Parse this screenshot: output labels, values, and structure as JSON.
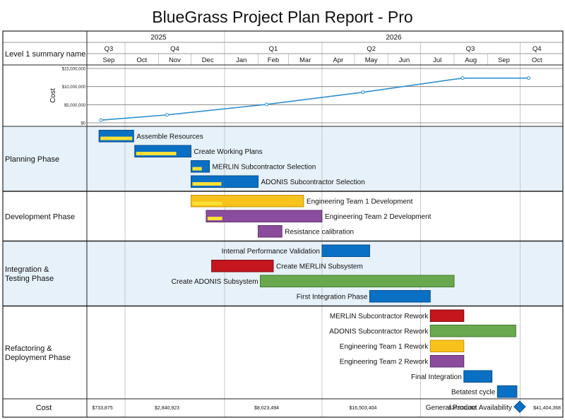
{
  "colors": {
    "blue": "#0a70c4",
    "blue_border": "#064d8a",
    "yellow": "#f9c21b",
    "yellow_border": "#c99500",
    "purple": "#8c4c9e",
    "purple_border": "#5e2f6d",
    "red": "#c4161c",
    "red_border": "#7e0b0e",
    "green": "#6aa84f",
    "green_border": "#3d7a2a",
    "band": "#e6f1f9",
    "cost_line": "#2e8fd0",
    "grid": "#c8c8c8",
    "progress": "#ffe135"
  },
  "chart_data": {
    "type": "gantt",
    "title": "BlueGrass Project Plan Report - Pro",
    "header_label": "Level 1 summary name",
    "years": [
      {
        "label": "2025",
        "start": "2025-09-01",
        "end": "2026-01-01"
      },
      {
        "label": "2026",
        "start": "2026-01-01",
        "end": "2026-11-01"
      }
    ],
    "quarters": [
      {
        "label": "Q3",
        "start": "2025-09-01",
        "end": "2025-10-01"
      },
      {
        "label": "Q4",
        "start": "2025-10-01",
        "end": "2026-01-01"
      },
      {
        "label": "Q1",
        "start": "2026-01-01",
        "end": "2026-04-01"
      },
      {
        "label": "Q2",
        "start": "2026-04-01",
        "end": "2026-07-01"
      },
      {
        "label": "Q3",
        "start": "2026-07-01",
        "end": "2026-10-01"
      },
      {
        "label": "Q4",
        "start": "2026-10-01",
        "end": "2026-11-01"
      }
    ],
    "months": [
      "Sep",
      "Oct",
      "Nov",
      "Dec",
      "Jan",
      "Feb",
      "Mar",
      "Apr",
      "May",
      "Jun",
      "Jul",
      "Aug",
      "Sep",
      "Oct"
    ],
    "cost_chart": {
      "ylabel": "Cost",
      "ylim": [
        0,
        15000000
      ],
      "y_ticks": [
        "$0",
        "$5,000,000",
        "$10,000,000",
        "$15,000,000"
      ],
      "series": [
        {
          "x": "2025-09-01",
          "y": 733875
        },
        {
          "x": "2025-11-01",
          "y": 2190000
        },
        {
          "x": "2026-02-01",
          "y": 5090000
        },
        {
          "x": "2026-05-01",
          "y": 8440000
        },
        {
          "x": "2026-08-01",
          "y": 12340000
        },
        {
          "x": "2026-10-01",
          "y": 12340000
        }
      ]
    },
    "phases": [
      {
        "name": "Planning Phase",
        "tasks": [
          {
            "name": "Assemble Resources",
            "start": "2025-09-07",
            "end": "2025-10-09",
            "color": "blue",
            "progress": 1,
            "label_side": "right"
          },
          {
            "name": "Create Working Plans",
            "start": "2025-10-10",
            "end": "2025-12-01",
            "color": "blue",
            "progress": 0.75,
            "label_side": "right"
          },
          {
            "name": "MERLIN Subcontractor Selection",
            "start": "2025-12-01",
            "end": "2025-12-18",
            "color": "blue",
            "progress": 0.6,
            "label_side": "right"
          },
          {
            "name": "ADONIS Subcontractor Selection",
            "start": "2025-12-01",
            "end": "2026-02-01",
            "color": "blue",
            "progress": 0.45,
            "label_side": "right"
          }
        ]
      },
      {
        "name": "Development Phase",
        "tasks": [
          {
            "name": "Engineering Team 1 Development",
            "start": "2025-12-01",
            "end": "2026-03-15",
            "color": "yellow",
            "progress": 0.27,
            "label_side": "right"
          },
          {
            "name": "Engineering Team 2 Development",
            "start": "2025-12-15",
            "end": "2026-04-01",
            "color": "purple",
            "progress": 0.13,
            "label_side": "right"
          },
          {
            "name": "Resistance calibration",
            "start": "2026-02-01",
            "end": "2026-02-23",
            "color": "purple",
            "progress": 0,
            "label_side": "right"
          }
        ]
      },
      {
        "name": "Integration & Testing Phase",
        "tasks": [
          {
            "name": "Internal Performance Validation",
            "start": "2026-04-01",
            "end": "2026-05-15",
            "color": "blue",
            "progress": 0,
            "label_side": "left"
          },
          {
            "name": "Create MERLIN Subsystem",
            "start": "2025-12-20",
            "end": "2026-02-15",
            "color": "red",
            "progress": 0,
            "label_side": "right"
          },
          {
            "name": "Create ADONIS Subsystem",
            "start": "2026-02-03",
            "end": "2026-08-01",
            "color": "green",
            "progress": 0,
            "label_side": "left"
          },
          {
            "name": "First Integration Phase",
            "start": "2026-05-15",
            "end": "2026-07-10",
            "color": "blue",
            "progress": 0,
            "label_side": "left"
          }
        ]
      },
      {
        "name": "Refactoring & Deployment Phase",
        "tasks": [
          {
            "name": "MERLIN Subcontractor Rework",
            "start": "2026-07-10",
            "end": "2026-08-10",
            "color": "red",
            "progress": 0,
            "label_side": "left"
          },
          {
            "name": "ADONIS Subcontractor Rework",
            "start": "2026-07-10",
            "end": "2026-09-27",
            "color": "green",
            "progress": 0,
            "label_side": "left"
          },
          {
            "name": "Engineering Team 1 Rework",
            "start": "2026-07-10",
            "end": "2026-08-10",
            "color": "yellow",
            "progress": 0,
            "label_side": "left"
          },
          {
            "name": "Engineering Team 2 Rework",
            "start": "2026-07-10",
            "end": "2026-08-10",
            "color": "purple",
            "progress": 0,
            "label_side": "left"
          },
          {
            "name": "Final Integration",
            "start": "2026-08-10",
            "end": "2026-09-05",
            "color": "blue",
            "progress": 0,
            "label_side": "left"
          },
          {
            "name": "Betatest cycle",
            "start": "2026-09-10",
            "end": "2026-09-28",
            "color": "blue",
            "progress": 0,
            "label_side": "left"
          },
          {
            "name": "General Product Availability",
            "start": "2026-09-28",
            "end": "2026-09-28",
            "color": "blue",
            "milestone": true,
            "label_side": "left"
          }
        ]
      }
    ],
    "cost_row": {
      "label": "Cost",
      "values": [
        {
          "at": "2025-09-01",
          "text": "$733,875"
        },
        {
          "at": "2025-11-01",
          "text": "$2,840,923"
        },
        {
          "at": "2026-02-01",
          "text": "$8,023,494"
        },
        {
          "at": "2026-05-01",
          "text": "$16,503,404"
        },
        {
          "at": "2026-08-01",
          "text": "$28,931,768"
        },
        {
          "at": "2026-10-01",
          "text": "$41,404,368"
        }
      ]
    }
  }
}
